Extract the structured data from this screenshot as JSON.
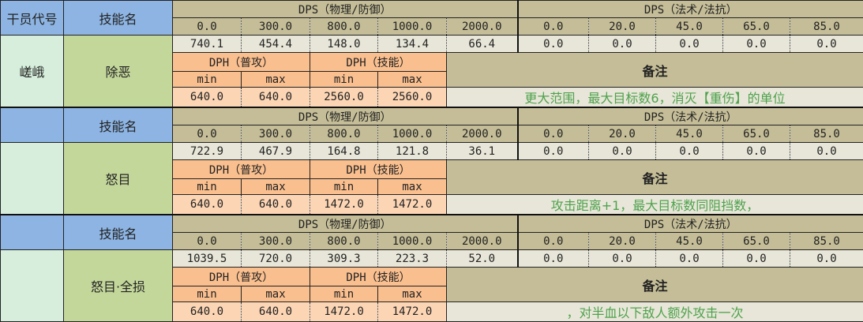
{
  "header": {
    "operator_label": "干员代号",
    "skill_label": "技能名",
    "dps_phys_label": "DPS（物理/防御）",
    "dps_magic_label": "DPS（法术/法抗）",
    "dph_normal_label": "DPH（普攻）",
    "dph_skill_label": "DPH（技能）",
    "min_label": "min",
    "max_label": "max",
    "note_label": "备注"
  },
  "defense_values": [
    "0.0",
    "300.0",
    "800.0",
    "1000.0",
    "2000.0"
  ],
  "res_values": [
    "0.0",
    "20.0",
    "45.0",
    "65.0",
    "85.0"
  ],
  "operator": "嵯峨",
  "blocks": [
    {
      "skill": "除恶",
      "dps_phys": [
        "740.1",
        "454.4",
        "148.0",
        "134.4",
        "66.4"
      ],
      "dps_magic": [
        "0.0",
        "0.0",
        "0.0",
        "0.0",
        "0.0"
      ],
      "dph": [
        "640.0",
        "640.0",
        "2560.0",
        "2560.0"
      ],
      "note": "更大范围，最大目标数6，消灭【重伤】的单位"
    },
    {
      "skill": "怒目",
      "dps_phys": [
        "722.9",
        "467.9",
        "164.8",
        "121.8",
        "36.1"
      ],
      "dps_magic": [
        "0.0",
        "0.0",
        "0.0",
        "0.0",
        "0.0"
      ],
      "dph": [
        "640.0",
        "640.0",
        "1472.0",
        "1472.0"
      ],
      "note": "攻击距离+1，最大目标数同阻挡数，"
    },
    {
      "skill": "怒目·全损",
      "dps_phys": [
        "1039.5",
        "720.0",
        "309.3",
        "223.3",
        "52.0"
      ],
      "dps_magic": [
        "0.0",
        "0.0",
        "0.0",
        "0.0",
        "0.0"
      ],
      "dph": [
        "640.0",
        "640.0",
        "1472.0",
        "1472.0"
      ],
      "note": "，对半血以下敌人额外攻击一次"
    }
  ],
  "colors": {
    "header_blue": "#8db4e2",
    "skill_green": "#c4d79b",
    "operator_green": "#d6eedb",
    "khaki": "#c4bd97",
    "dph_orange": "#fabf8f",
    "note_text": "#4ea24e"
  }
}
